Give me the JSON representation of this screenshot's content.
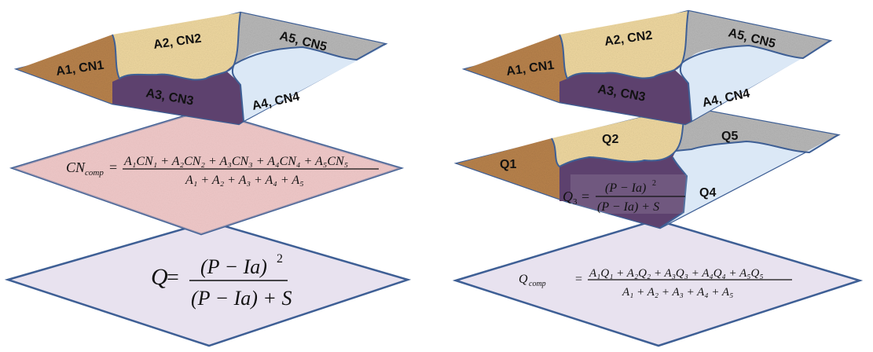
{
  "left_diagram": {
    "top_layer": {
      "regions": [
        {
          "label": "A1, CN1",
          "color": "#b8824c"
        },
        {
          "label": "A2, CN2",
          "color": "#efd8a0"
        },
        {
          "label": "A3, CN3",
          "color": "#5d416e"
        },
        {
          "label": "A4, CN4",
          "color": "#dbe8f6"
        },
        {
          "label": "A5, CN5",
          "color": "#b8b8b8"
        }
      ]
    },
    "middle_layer": {
      "color": "#efc8c8",
      "formula_lhs": "CN",
      "formula_lhs_sub": "comp",
      "numerator": "A₁CN₁ + A₂CN₂ + A₃CN₃ + A₄CN₄ + A₅CN₅",
      "denominator": "A₁ + A₂ + A₃ + A₄ + A₅"
    },
    "bottom_layer": {
      "color": "#e8e2ef",
      "formula_lhs": "Q",
      "numerator": "(P − Ia)",
      "numerator_exp": "2",
      "denominator": "(P − Ia) + S"
    }
  },
  "right_diagram": {
    "top_layer": {
      "regions": [
        {
          "label": "A1, CN1"
        },
        {
          "label": "A2, CN2"
        },
        {
          "label": "A3, CN3"
        },
        {
          "label": "A4, CN4"
        },
        {
          "label": "A5, CN5"
        }
      ]
    },
    "middle_layer": {
      "regions": [
        {
          "label": "Q1"
        },
        {
          "label": "Q2"
        },
        {
          "label": "Q4"
        },
        {
          "label": "Q5"
        }
      ],
      "q3_lhs": "Q",
      "q3_lhs_sub": "3",
      "q3_numerator": "(P − Ia)",
      "q3_numerator_exp": "2",
      "q3_denominator": "(P − Ia) + S"
    },
    "bottom_layer": {
      "formula_lhs": "Q",
      "formula_lhs_sub": "comp",
      "numerator": "A₁Q₁ + A₂Q₂ + A₃Q₃ + A₄Q₄ + A₅Q₅",
      "denominator": "A₁ + A₂ + A₃ + A₄ + A₅"
    }
  },
  "colors": {
    "outline": "#3e5f95",
    "bottom_outline": "#3e5f95"
  }
}
